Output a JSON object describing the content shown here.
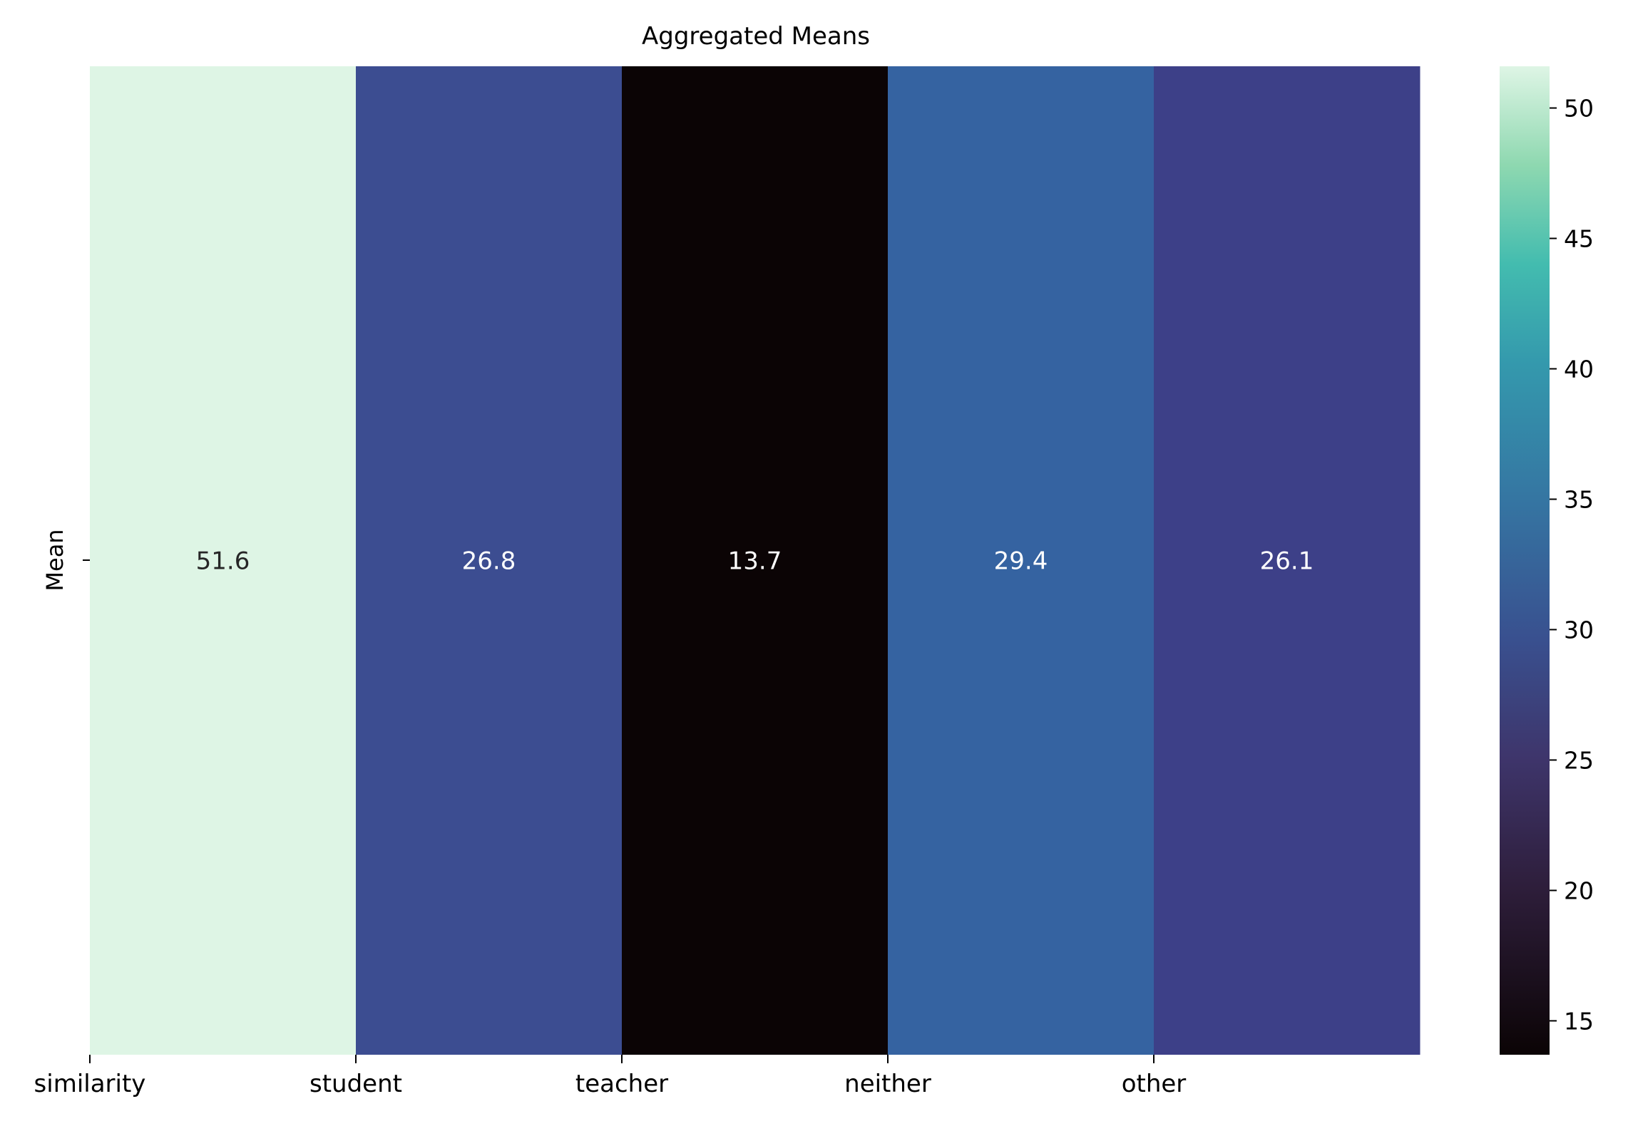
{
  "chart_data": {
    "type": "heatmap",
    "title": "Aggregated Means",
    "xlabel": "",
    "ylabel": "",
    "row_labels": [
      "Mean"
    ],
    "columns": [
      "similarity",
      "student",
      "teacher",
      "neither",
      "other"
    ],
    "values": [
      [
        51.6,
        26.8,
        13.7,
        29.4,
        26.1
      ]
    ],
    "colorbar": {
      "vmin": 13.7,
      "vmax": 51.6,
      "ticks": [
        15,
        20,
        25,
        30,
        35,
        40,
        45,
        50
      ],
      "colormap": "mako"
    },
    "cell_colors": [
      "#def5e5",
      "#3c4d91",
      "#0b0405",
      "#3563a1",
      "#3d4088"
    ],
    "annotation_colors": [
      "#262626",
      "#ffffff",
      "#ffffff",
      "#ffffff",
      "#ffffff"
    ],
    "grid": false
  }
}
